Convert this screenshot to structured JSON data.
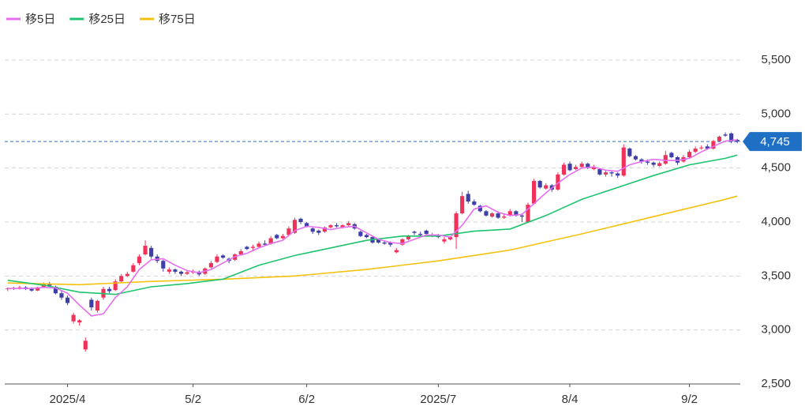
{
  "chart_data": {
    "type": "candlestick",
    "categories": [
      null,
      null,
      null,
      null,
      null,
      null,
      null,
      null,
      null,
      null,
      "2025/4",
      null,
      null,
      null,
      null,
      null,
      null,
      null,
      null,
      null,
      null,
      null,
      null,
      null,
      null,
      null,
      null,
      null,
      null,
      null,
      null,
      "5/2",
      null,
      null,
      null,
      null,
      null,
      null,
      null,
      null,
      null,
      null,
      null,
      null,
      null,
      null,
      null,
      null,
      null,
      null,
      "6/2",
      null,
      null,
      null,
      null,
      null,
      null,
      null,
      null,
      null,
      null,
      null,
      null,
      null,
      null,
      null,
      null,
      null,
      null,
      null,
      null,
      null,
      "2025/7",
      null,
      null,
      null,
      null,
      null,
      null,
      null,
      null,
      null,
      null,
      null,
      null,
      null,
      null,
      null,
      null,
      null,
      null,
      null,
      null,
      null,
      "8/4",
      null,
      null,
      null,
      null,
      null,
      null,
      null,
      null,
      null,
      null,
      null,
      null,
      null,
      null,
      null,
      null,
      null,
      null,
      null,
      "9/2",
      null,
      null,
      null,
      null,
      null,
      null,
      null,
      null
    ],
    "open": [
      3380,
      3385,
      3390,
      3395,
      3380,
      3365,
      3400,
      3430,
      3400,
      3340,
      3300,
      3080,
      3070,
      2820,
      3280,
      3180,
      3300,
      3380,
      3370,
      3450,
      3500,
      3540,
      3620,
      3700,
      3760,
      3680,
      3640,
      3540,
      3560,
      3540,
      3520,
      3535,
      3540,
      3520,
      3580,
      3630,
      3690,
      3660,
      3650,
      3700,
      3770,
      3760,
      3770,
      3800,
      3800,
      3880,
      3850,
      3880,
      3900,
      4030,
      3990,
      3940,
      3920,
      3910,
      3950,
      3970,
      3950,
      3970,
      3980,
      3910,
      3880,
      3860,
      3840,
      3810,
      3810,
      3720,
      3790,
      3840,
      3910,
      3890,
      3920,
      3880,
      3880,
      3820,
      3840,
      3860,
      4080,
      4260,
      4190,
      4150,
      4100,
      4050,
      4080,
      4040,
      4060,
      4100,
      4060,
      4000,
      4170,
      4380,
      4310,
      4340,
      4300,
      4440,
      4540,
      4490,
      4510,
      4540,
      4490,
      4490,
      4440,
      4460,
      4450,
      4430,
      4680,
      4610,
      4580,
      4560,
      4550,
      4520,
      4540,
      4640,
      4600,
      4560,
      4600,
      4650,
      4690,
      4700,
      4680,
      4750,
      4810,
      4820,
      4760
    ],
    "high": [
      3395,
      3400,
      3410,
      3405,
      3395,
      3400,
      3440,
      3445,
      3410,
      3360,
      3320,
      3160,
      3100,
      2930,
      3300,
      3280,
      3400,
      3400,
      3470,
      3520,
      3540,
      3620,
      3700,
      3830,
      3780,
      3700,
      3650,
      3580,
      3570,
      3550,
      3550,
      3560,
      3550,
      3580,
      3640,
      3700,
      3700,
      3670,
      3710,
      3750,
      3780,
      3790,
      3820,
      3830,
      3870,
      3890,
      3890,
      3960,
      4040,
      4040,
      4000,
      3950,
      3930,
      3960,
      3980,
      3990,
      3980,
      4010,
      3990,
      3920,
      3890,
      3870,
      3850,
      3830,
      3820,
      3760,
      3850,
      3880,
      3920,
      3910,
      3930,
      3900,
      3890,
      3860,
      3870,
      4100,
      4280,
      4290,
      4210,
      4160,
      4110,
      4090,
      4100,
      4070,
      4120,
      4110,
      4080,
      4180,
      4400,
      4390,
      4360,
      4350,
      4460,
      4550,
      4560,
      4530,
      4560,
      4550,
      4530,
      4500,
      4480,
      4470,
      4460,
      4720,
      4690,
      4620,
      4590,
      4580,
      4560,
      4560,
      4660,
      4650,
      4610,
      4620,
      4670,
      4700,
      4710,
      4720,
      4760,
      4800,
      4830,
      4830,
      4770
    ],
    "low": [
      3360,
      3370,
      3375,
      3370,
      3355,
      3360,
      3390,
      3400,
      3330,
      3280,
      3230,
      3060,
      3040,
      2800,
      3180,
      3160,
      3280,
      3340,
      3360,
      3440,
      3490,
      3530,
      3600,
      3690,
      3660,
      3620,
      3540,
      3520,
      3520,
      3500,
      3510,
      3520,
      3500,
      3510,
      3570,
      3620,
      3660,
      3620,
      3640,
      3690,
      3740,
      3740,
      3760,
      3780,
      3790,
      3840,
      3840,
      3870,
      3890,
      3980,
      3950,
      3890,
      3880,
      3900,
      3940,
      3950,
      3940,
      3960,
      3930,
      3860,
      3850,
      3800,
      3800,
      3790,
      3770,
      3710,
      3780,
      3830,
      3880,
      3870,
      3880,
      3860,
      3850,
      3800,
      3830,
      3750,
      4070,
      4170,
      4150,
      4090,
      4050,
      4040,
      4030,
      4030,
      4050,
      4050,
      4000,
      3990,
      4160,
      4310,
      4300,
      4280,
      4290,
      4430,
      4470,
      4480,
      4500,
      4490,
      4480,
      4430,
      4420,
      4420,
      4410,
      4420,
      4600,
      4570,
      4540,
      4530,
      4510,
      4510,
      4530,
      4590,
      4530,
      4550,
      4590,
      4640,
      4670,
      4670,
      4670,
      4740,
      4790,
      4730,
      4730
    ],
    "close": [
      3385,
      3390,
      3395,
      3380,
      3365,
      3395,
      3430,
      3410,
      3340,
      3300,
      3250,
      3140,
      3090,
      2900,
      3210,
      3270,
      3380,
      3360,
      3450,
      3500,
      3520,
      3600,
      3680,
      3780,
      3680,
      3640,
      3570,
      3560,
      3540,
      3520,
      3535,
      3540,
      3515,
      3570,
      3620,
      3680,
      3670,
      3640,
      3700,
      3730,
      3750,
      3770,
      3800,
      3790,
      3850,
      3850,
      3870,
      3940,
      4020,
      4000,
      3960,
      3910,
      3900,
      3950,
      3970,
      3960,
      3970,
      3990,
      3940,
      3870,
      3860,
      3810,
      3810,
      3800,
      3790,
      3740,
      3840,
      3870,
      3900,
      3880,
      3890,
      3880,
      3860,
      3840,
      3860,
      4080,
      4240,
      4190,
      4160,
      4100,
      4060,
      4080,
      4040,
      4050,
      4100,
      4060,
      4050,
      4160,
      4380,
      4320,
      4340,
      4300,
      4440,
      4530,
      4480,
      4510,
      4540,
      4500,
      4510,
      4440,
      4460,
      4450,
      4430,
      4690,
      4610,
      4580,
      4560,
      4550,
      4530,
      4545,
      4620,
      4600,
      4550,
      4600,
      4650,
      4680,
      4690,
      4680,
      4750,
      4790,
      4800,
      4745,
      4745
    ],
    "up_color": "#f0325a",
    "down_color": "#3d3fa6",
    "lines": [
      {
        "name": "移5日",
        "color": "#e56ef0",
        "x": [
          0,
          2,
          4,
          6,
          8,
          10,
          12,
          14,
          16,
          18,
          20,
          22,
          24,
          26,
          28,
          30,
          32,
          34,
          36,
          38,
          40,
          42,
          44,
          46,
          48,
          50,
          52,
          54,
          56,
          58,
          60,
          62,
          64,
          66,
          68,
          70,
          72,
          74,
          76,
          78,
          80,
          82,
          84,
          86,
          88,
          90,
          92,
          94,
          96,
          98,
          100,
          102,
          104,
          106,
          108,
          110,
          112,
          114,
          116,
          118,
          120,
          122
        ],
        "values": [
          3385,
          3385,
          3385,
          3395,
          3390,
          3340,
          3230,
          3130,
          3150,
          3300,
          3400,
          3560,
          3650,
          3660,
          3600,
          3550,
          3530,
          3560,
          3620,
          3680,
          3710,
          3760,
          3800,
          3830,
          3920,
          3960,
          3950,
          3930,
          3950,
          3960,
          3900,
          3840,
          3810,
          3800,
          3840,
          3880,
          3880,
          3860,
          3970,
          4120,
          4150,
          4090,
          4060,
          4070,
          4170,
          4270,
          4360,
          4440,
          4500,
          4510,
          4480,
          4470,
          4530,
          4560,
          4580,
          4570,
          4570,
          4590,
          4650,
          4700,
          4750,
          4760
        ]
      },
      {
        "name": "移25日",
        "color": "#1dc46d",
        "x": [
          0,
          6,
          12,
          18,
          24,
          30,
          36,
          42,
          48,
          54,
          60,
          66,
          72,
          78,
          84,
          90,
          96,
          102,
          108,
          114,
          120,
          122
        ],
        "values": [
          3460,
          3415,
          3350,
          3330,
          3400,
          3430,
          3470,
          3600,
          3690,
          3760,
          3830,
          3870,
          3870,
          3915,
          3935,
          4060,
          4210,
          4320,
          4430,
          4530,
          4590,
          4620
        ]
      },
      {
        "name": "移75日",
        "color": "#f4c20d",
        "x": [
          0,
          12,
          24,
          36,
          48,
          60,
          72,
          84,
          96,
          108,
          114,
          120,
          122
        ],
        "values": [
          3435,
          3420,
          3450,
          3470,
          3500,
          3560,
          3640,
          3740,
          3890,
          4050,
          4130,
          4210,
          4240
        ]
      }
    ],
    "last_price": {
      "value": 4745,
      "label": "4,745"
    },
    "ylim": [
      2500,
      5500
    ],
    "yticks": [
      {
        "value": 2500,
        "label": "2,500"
      },
      {
        "value": 3000,
        "label": "3,000"
      },
      {
        "value": 3500,
        "label": "3,500"
      },
      {
        "value": 4000,
        "label": "4,000"
      },
      {
        "value": 4500,
        "label": "4,500"
      },
      {
        "value": 5000,
        "label": "5,000"
      },
      {
        "value": 5500,
        "label": "5,500"
      }
    ],
    "grid": true
  }
}
